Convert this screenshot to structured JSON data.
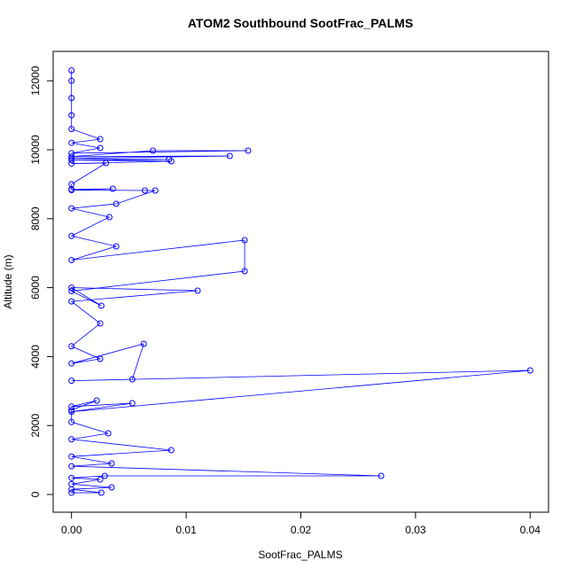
{
  "chart_data": {
    "type": "line",
    "title": "ATOM2 Southbound SootFrac_PALMS",
    "x_label": "SootFrac_PALMS",
    "y_label": "Altitude (m)",
    "x": [
      0,
      0.0026,
      0,
      0.0035,
      0,
      0.0025,
      0,
      0.0029,
      0.027,
      0,
      0.0035,
      0,
      0.0087,
      0,
      0.0032,
      0,
      0,
      0.0022,
      0,
      0.0053,
      0,
      0.04,
      0,
      0.0053,
      0.0063,
      0,
      0.0025,
      0,
      0.0025,
      0,
      0.011,
      0,
      0.0026,
      0,
      0.0151,
      0.0151,
      0,
      0.0039,
      0,
      0.0033,
      0,
      0.0039,
      0.0073,
      0.0064,
      0,
      0.0036,
      0,
      0,
      0.003,
      0,
      0.0087,
      0,
      0.0085,
      0,
      0.0138,
      0,
      0.0071,
      0.0154,
      0,
      0.0025,
      0,
      0.0025,
      0,
      0,
      0,
      0,
      0
    ],
    "series": [
      {
        "color": "#0000ff",
        "values": [
          50,
          52,
          150,
          206,
          300,
          437,
          480,
          540,
          540,
          820,
          900,
          1100,
          1285,
          1600,
          1774,
          2100,
          2450,
          2725,
          2550,
          2648,
          2400,
          3599,
          3300,
          3342,
          4370,
          3800,
          3933,
          4300,
          4961,
          5600,
          5913,
          6000,
          5476,
          5900,
          6478,
          7378,
          6800,
          7198,
          7500,
          8046,
          8300,
          8432,
          8817,
          8817,
          8830,
          8869,
          8850,
          9000,
          9614,
          9600,
          9666,
          9700,
          9717,
          9750,
          9820,
          9800,
          9974,
          9974,
          9900,
          10051,
          10200,
          10308,
          10600,
          11000,
          11500,
          12000,
          12300
        ]
      }
    ],
    "xlim": [
      -0.0016,
      0.0416
    ],
    "ylim": [
      -514,
      12853
    ],
    "xticks": [
      {
        "value": 0,
        "label": "0.00"
      },
      {
        "value": 0.01,
        "label": "0.01"
      },
      {
        "value": 0.02,
        "label": "0.02"
      },
      {
        "value": 0.03,
        "label": "0.03"
      },
      {
        "value": 0.04,
        "label": "0.04"
      }
    ],
    "yticks": [
      0,
      2000,
      4000,
      6000,
      8000,
      10000,
      12000
    ]
  }
}
